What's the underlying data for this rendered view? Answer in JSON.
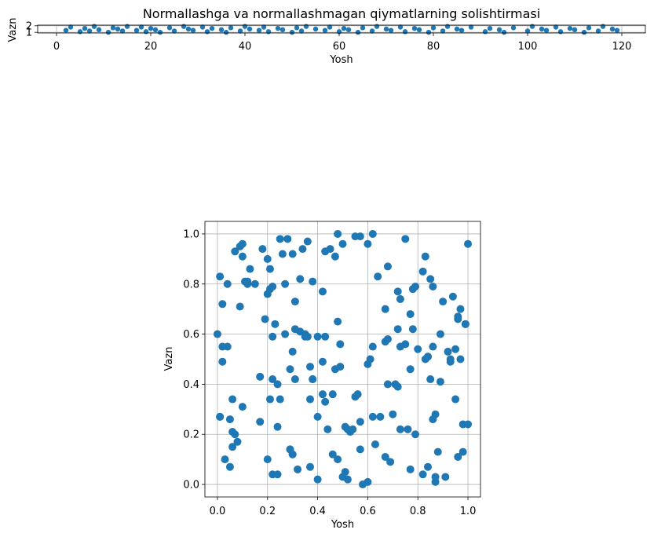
{
  "figure": {
    "title": "Normallashga va normallashmagan qiymatlarning solishtirmasi"
  },
  "chart_data": [
    {
      "type": "scatter",
      "xlabel": "Yosh",
      "ylabel": "Vazn",
      "xlim": [
        -4,
        125
      ],
      "ylim": [
        0.9,
        2.1
      ],
      "xticks": [
        0,
        20,
        40,
        60,
        80,
        100,
        120
      ],
      "yticks": [
        1,
        2
      ],
      "grid": true,
      "color": "#1f77b4",
      "x": [
        2,
        3,
        5,
        6,
        7,
        8,
        9,
        11,
        12,
        13,
        14,
        15,
        17,
        18,
        19,
        20,
        21,
        22,
        24,
        25,
        27,
        28,
        29,
        31,
        32,
        33,
        35,
        36,
        37,
        39,
        40,
        41,
        43,
        44,
        45,
        47,
        48,
        50,
        51,
        52,
        53,
        55,
        57,
        58,
        60,
        61,
        62,
        64,
        65,
        67,
        68,
        70,
        71,
        73,
        74,
        76,
        77,
        79,
        80,
        82,
        83,
        85,
        86,
        88,
        91,
        92,
        94,
        95,
        97,
        100,
        101,
        103,
        104,
        106,
        107,
        109,
        110,
        112,
        113,
        115,
        116,
        118,
        119
      ],
      "y": [
        1.3,
        1.8,
        1.1,
        1.6,
        1.2,
        1.9,
        1.4,
        1.0,
        1.7,
        1.5,
        1.2,
        1.9,
        1.3,
        1.8,
        1.1,
        1.6,
        1.4,
        1.0,
        1.7,
        1.2,
        1.9,
        1.5,
        1.3,
        1.8,
        1.1,
        1.6,
        1.4,
        1.0,
        1.7,
        1.2,
        1.9,
        1.5,
        1.3,
        1.8,
        1.1,
        1.6,
        1.4,
        1.0,
        1.7,
        1.2,
        1.9,
        1.5,
        1.3,
        1.8,
        1.1,
        1.6,
        1.4,
        1.0,
        1.7,
        1.2,
        1.9,
        1.5,
        1.3,
        1.8,
        1.1,
        1.6,
        1.4,
        1.0,
        1.7,
        1.2,
        1.9,
        1.5,
        1.3,
        1.8,
        1.1,
        1.6,
        1.4,
        1.0,
        1.7,
        1.2,
        1.9,
        1.5,
        1.3,
        1.8,
        1.1,
        1.6,
        1.4,
        1.0,
        1.7,
        1.2,
        1.9,
        1.5,
        1.3
      ]
    },
    {
      "type": "scatter",
      "xlabel": "Yosh",
      "ylabel": "Vazn",
      "xlim": [
        -0.05,
        1.05
      ],
      "ylim": [
        -0.05,
        1.05
      ],
      "xticks": [
        0.0,
        0.2,
        0.4,
        0.6,
        0.8,
        1.0
      ],
      "yticks": [
        0.0,
        0.2,
        0.4,
        0.6,
        0.8,
        1.0
      ],
      "xtick_labels": [
        "0.0",
        "0.2",
        "0.4",
        "0.6",
        "0.8",
        "1.0"
      ],
      "ytick_labels": [
        "0.0",
        "0.2",
        "0.4",
        "0.6",
        "0.8",
        "1.0"
      ],
      "grid": true,
      "color": "#1f77b4",
      "x": [
        0.01,
        0.02,
        0.04,
        0.07,
        0.09,
        0.1,
        0.1,
        0.12,
        0.13,
        0.15,
        0.18,
        0.2,
        0.21,
        0.22,
        0.25,
        0.26,
        0.28,
        0.3,
        0.31,
        0.33,
        0.34,
        0.36,
        0.38,
        0.42,
        0.43,
        0.45,
        0.47,
        0.48,
        0.5,
        0.55,
        0.57,
        0.6,
        0.62,
        0.64,
        0.67,
        0.68,
        0.72,
        0.73,
        0.75,
        0.77,
        0.78,
        0.79,
        0.82,
        0.83,
        0.85,
        0.86,
        0.9,
        0.94,
        0.96,
        0.97,
        0.99,
        1.0,
        0.0,
        0.02,
        0.04,
        0.09,
        0.12,
        0.17,
        0.19,
        0.2,
        0.22,
        0.23,
        0.27,
        0.29,
        0.3,
        0.33,
        0.36,
        0.37,
        0.4,
        0.43,
        0.47,
        0.48,
        0.49,
        0.52,
        0.55,
        0.6,
        0.62,
        0.67,
        0.68,
        0.72,
        0.73,
        0.77,
        0.78,
        0.83,
        0.84,
        0.86,
        0.89,
        0.92,
        0.95,
        0.97,
        0.99,
        0.01,
        0.02,
        0.05,
        0.06,
        0.07,
        0.08,
        0.1,
        0.17,
        0.21,
        0.22,
        0.24,
        0.25,
        0.29,
        0.3,
        0.31,
        0.35,
        0.37,
        0.38,
        0.4,
        0.42,
        0.43,
        0.46,
        0.49,
        0.51,
        0.53,
        0.56,
        0.57,
        0.62,
        0.68,
        0.7,
        0.72,
        0.76,
        0.79,
        0.84,
        0.86,
        0.87,
        0.89,
        0.93,
        0.96,
        0.98,
        1.0,
        0.03,
        0.05,
        0.06,
        0.2,
        0.22,
        0.24,
        0.29,
        0.3,
        0.32,
        0.37,
        0.4,
        0.46,
        0.5,
        0.52,
        0.57,
        0.6,
        0.63,
        0.67,
        0.73,
        0.77,
        0.84,
        0.87,
        0.88,
        0.91,
        0.95,
        0.98,
        0.01,
        0.06,
        0.11,
        0.21,
        0.24,
        0.27,
        0.31,
        0.35,
        0.38,
        0.42,
        0.44,
        0.48,
        0.51,
        0.54,
        0.58,
        0.61,
        0.65,
        0.69,
        0.71,
        0.75,
        0.8,
        0.82,
        0.85,
        0.87,
        0.93,
        0.96
      ],
      "y": [
        0.83,
        0.72,
        0.8,
        0.93,
        0.95,
        0.91,
        0.96,
        0.81,
        0.86,
        0.8,
        0.94,
        0.76,
        0.78,
        0.79,
        0.98,
        0.92,
        0.98,
        0.92,
        0.73,
        0.82,
        0.94,
        0.97,
        0.81,
        0.77,
        0.93,
        0.94,
        0.91,
        1.0,
        0.96,
        0.99,
        0.99,
        0.96,
        1.0,
        0.83,
        0.7,
        0.87,
        0.77,
        0.74,
        0.98,
        0.68,
        0.78,
        0.79,
        0.85,
        0.91,
        0.82,
        0.79,
        0.73,
        0.75,
        0.67,
        0.7,
        0.64,
        0.96,
        0.6,
        0.55,
        0.55,
        0.71,
        0.8,
        0.43,
        0.66,
        0.9,
        0.59,
        0.64,
        0.8,
        0.46,
        0.53,
        0.61,
        0.59,
        0.47,
        0.59,
        0.59,
        0.46,
        0.65,
        0.56,
        0.22,
        0.35,
        0.48,
        0.55,
        0.57,
        0.58,
        0.62,
        0.55,
        0.46,
        0.62,
        0.5,
        0.51,
        0.55,
        0.6,
        0.53,
        0.54,
        0.5,
        0.64,
        0.27,
        0.49,
        0.07,
        0.34,
        0.2,
        0.17,
        0.31,
        0.25,
        0.34,
        0.42,
        0.4,
        0.34,
        0.14,
        0.12,
        0.42,
        0.59,
        0.34,
        0.42,
        0.27,
        0.36,
        0.33,
        0.36,
        0.47,
        0.23,
        0.21,
        0.36,
        0.25,
        0.27,
        0.4,
        0.28,
        0.39,
        0.22,
        0.2,
        0.51,
        0.26,
        0.28,
        0.41,
        0.5,
        0.66,
        0.24,
        0.24,
        0.1,
        0.26,
        0.15,
        0.1,
        0.04,
        0.23,
        0.14,
        0.12,
        0.06,
        0.07,
        0.02,
        0.12,
        0.03,
        0.02,
        0.14,
        0.01,
        0.16,
        0.11,
        0.22,
        0.06,
        0.07,
        0.01,
        0.13,
        0.03,
        0.34,
        0.13,
        0.27,
        0.21,
        0.81,
        0.86,
        0.04,
        0.6,
        0.62,
        0.6,
        0.42,
        0.49,
        0.22,
        0.1,
        0.05,
        0.22,
        0.0,
        0.5,
        0.27,
        0.09,
        0.4,
        0.56,
        0.54,
        0.04,
        0.42,
        0.03,
        0.49,
        0.11
      ]
    }
  ]
}
